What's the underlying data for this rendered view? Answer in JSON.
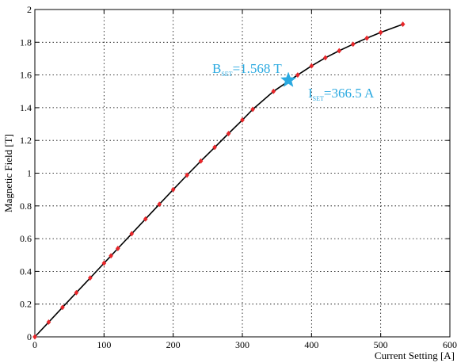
{
  "chart_data": {
    "type": "line",
    "xlabel": "Current Setting [A]",
    "ylabel": "Magnetic Field [T]",
    "xlim": [
      0,
      600
    ],
    "ylim": [
      0,
      2
    ],
    "x_ticks": [
      0,
      100,
      200,
      300,
      400,
      500,
      600
    ],
    "y_ticks": [
      0,
      0.2,
      0.4,
      0.6,
      0.8,
      1,
      1.2,
      1.4,
      1.6,
      1.8,
      2
    ],
    "x_tick_labels": [
      "0",
      "100",
      "200",
      "300",
      "400",
      "500",
      "600"
    ],
    "y_tick_labels": [
      "0",
      "0.2",
      "0.4",
      "0.6",
      "0.8",
      "1",
      "1.2",
      "1.4",
      "1.6",
      "1.8",
      "2"
    ],
    "grid": true,
    "series": [
      {
        "color": "#000000",
        "marker_color": "#e8262a",
        "x": [
          0,
          20,
          40,
          60,
          80,
          100,
          110,
          120,
          140,
          160,
          180,
          200,
          220,
          240,
          260,
          280,
          300,
          315,
          345,
          380,
          400,
          420,
          440,
          460,
          480,
          500,
          532
        ],
        "y": [
          0,
          0.09,
          0.18,
          0.27,
          0.36,
          0.45,
          0.495,
          0.54,
          0.63,
          0.72,
          0.81,
          0.9,
          0.988,
          1.074,
          1.158,
          1.242,
          1.325,
          1.39,
          1.5,
          1.6,
          1.655,
          1.705,
          1.748,
          1.788,
          1.825,
          1.86,
          1.91
        ]
      }
    ],
    "highlight_point": {
      "x": 366.5,
      "y": 1.568,
      "color": "#2aa9e0",
      "marker": "star"
    },
    "annotations": {
      "bset_main": "B",
      "bset_sub": "SET",
      "bset_value": "=1.568 T",
      "iset_main": "I",
      "iset_sub": "SET",
      "iset_value": "=366.5 A",
      "color": "#2aa9e0"
    }
  }
}
